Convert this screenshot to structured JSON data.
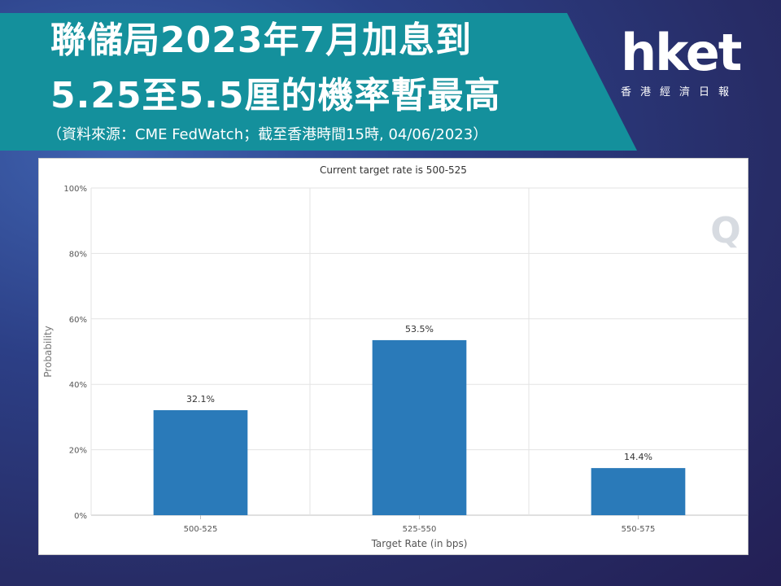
{
  "header": {
    "title_line1": "聯儲局2023年7月加息到",
    "title_line2": "5.25至5.5厘的機率暫最高",
    "source": "（資料來源：CME FedWatch；截至香港時間15時, 04/06/2023）"
  },
  "logo": {
    "name": "hket",
    "subtitle": "香港經濟日報"
  },
  "chart_data": {
    "type": "bar",
    "title": "Current target rate is 500-525",
    "xlabel": "Target Rate (in bps)",
    "ylabel": "Probability",
    "categories": [
      "500-525",
      "525-550",
      "550-575"
    ],
    "values": [
      32.1,
      53.5,
      14.4
    ],
    "data_labels": [
      "32.1%",
      "53.5%",
      "14.4%"
    ],
    "ylim": [
      0,
      100
    ],
    "yticks": [
      0,
      20,
      40,
      60,
      80,
      100
    ],
    "ytick_labels": [
      "0%",
      "20%",
      "40%",
      "60%",
      "80%",
      "100%"
    ],
    "grid": true,
    "bar_color": "#2a7ab9",
    "watermark": "Q"
  },
  "colors": {
    "banner": "#14909c",
    "background": "#2c3f86"
  }
}
